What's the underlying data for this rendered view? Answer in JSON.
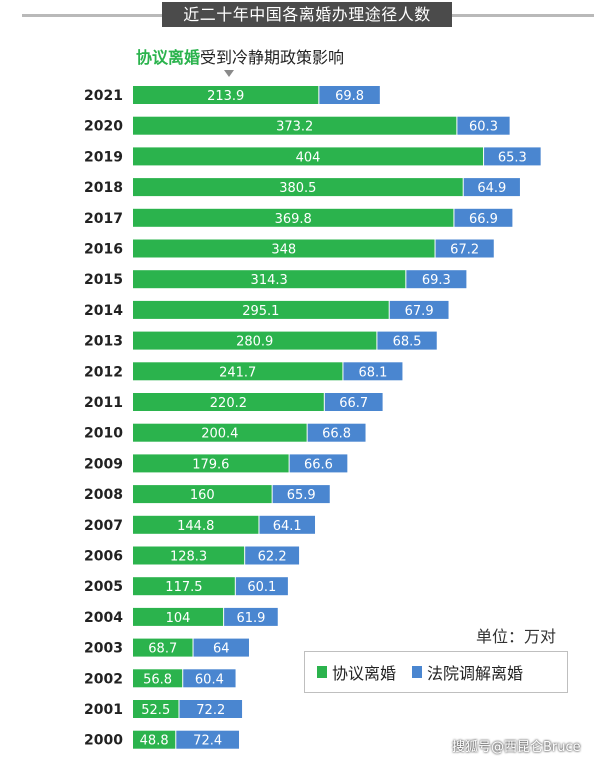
{
  "header": {
    "title": "近二十年中国各离婚办理途径人数"
  },
  "subtitle": {
    "highlight": "协议离婚",
    "rest": "受到冷静期政策影响"
  },
  "unit_label": "单位：万对",
  "legend": {
    "items": [
      {
        "label": "协议离婚"
      },
      {
        "label": "法院调解离婚"
      }
    ]
  },
  "watermark": "搜狐号@西昆仑Bruce",
  "colors": {
    "agreement": "#2bb34d",
    "court": "#4a86d0",
    "header_bg": "#4b4b4b",
    "header_line": "#b9b9b9"
  },
  "chart_data": {
    "type": "bar",
    "orientation": "horizontal",
    "stacked": true,
    "title": "近二十年中国各离婚办理途径人数",
    "subtitle": "协议离婚受到冷静期政策影响",
    "unit": "万对",
    "categories": [
      "2021",
      "2020",
      "2019",
      "2018",
      "2017",
      "2016",
      "2015",
      "2014",
      "2013",
      "2012",
      "2011",
      "2010",
      "2009",
      "2008",
      "2007",
      "2006",
      "2005",
      "2004",
      "2003",
      "2002",
      "2001",
      "2000"
    ],
    "series": [
      {
        "name": "协议离婚",
        "color": "#2bb34d",
        "values": [
          213.9,
          373.2,
          404,
          380.5,
          369.8,
          348,
          314.3,
          295.1,
          280.9,
          241.7,
          220.2,
          200.4,
          179.6,
          160,
          144.8,
          128.3,
          117.5,
          104,
          68.7,
          56.8,
          52.5,
          48.8
        ]
      },
      {
        "name": "法院调解离婚",
        "color": "#4a86d0",
        "values": [
          69.8,
          60.3,
          65.3,
          64.9,
          66.9,
          67.2,
          69.3,
          67.9,
          68.5,
          68.1,
          66.7,
          66.8,
          66.6,
          65.9,
          64.1,
          62.2,
          60.1,
          61.9,
          64,
          60.4,
          72.2,
          72.4
        ]
      }
    ],
    "legend_position": "bottom-right",
    "grid": false
  }
}
